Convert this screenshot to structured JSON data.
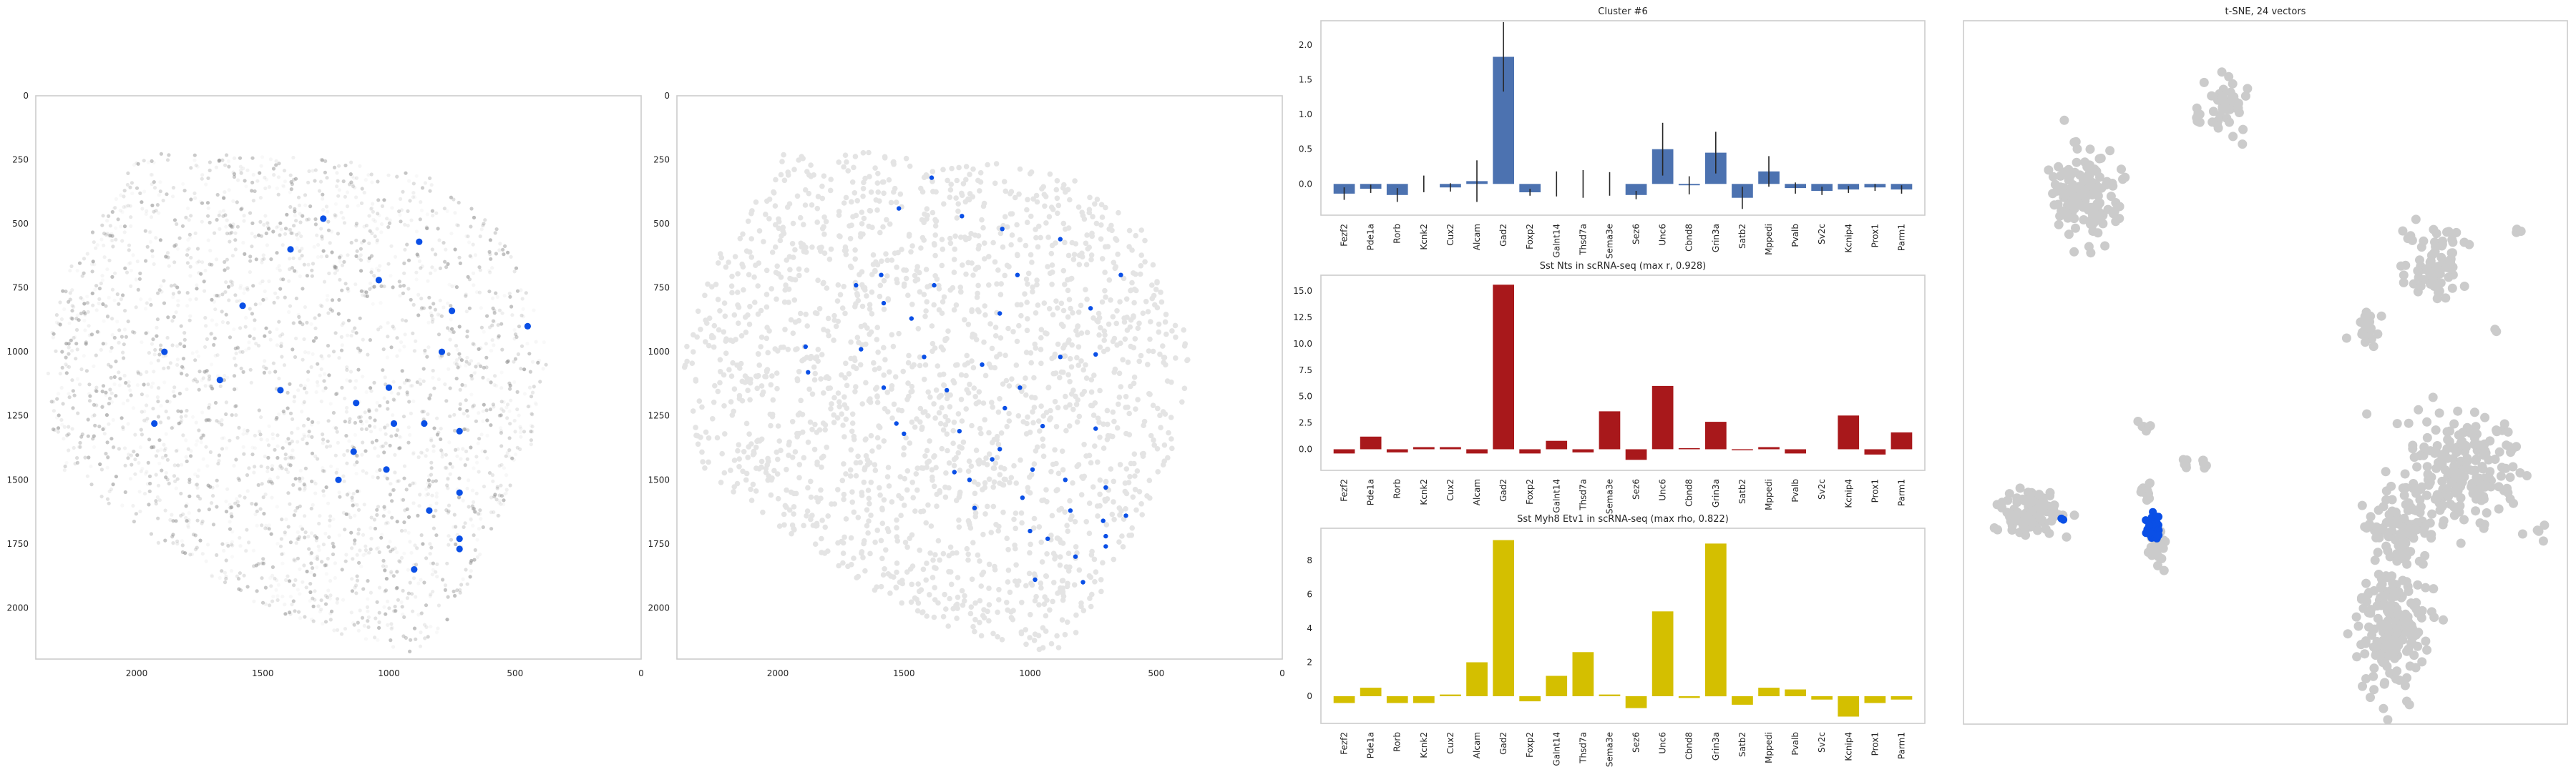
{
  "figure": {
    "background": "#ffffff",
    "frame_color": "#cccccc",
    "text_color": "#262626"
  },
  "colors": {
    "cell_gray": "#8c8c8c",
    "cell_light": "#e4e4e4",
    "highlight_blue": "#0a4fe6",
    "tsne_gray": "#cbcbcb",
    "bar_blue": "#4c72b0",
    "bar_red": "#a8181b",
    "bar_yellow": "#d4bf00",
    "error_bar": "#262626"
  },
  "chart_data": [
    {
      "id": "spatial-intensity",
      "type": "scatter",
      "title": "",
      "xlim": [
        2400,
        0
      ],
      "ylim": [
        2200,
        0
      ],
      "xticks": [
        "2000",
        "1500",
        "1000",
        "500",
        "0"
      ],
      "xtick_values": [
        2000,
        1500,
        1000,
        500,
        0
      ],
      "yticks": [
        "0",
        "250",
        "500",
        "750",
        "1000",
        "1250",
        "1500",
        "1750",
        "2000"
      ],
      "ytick_values": [
        0,
        250,
        500,
        750,
        1000,
        1250,
        1500,
        1750,
        2000
      ],
      "highlight_points": [
        {
          "x": 1260,
          "y": 480
        },
        {
          "x": 880,
          "y": 570
        },
        {
          "x": 1390,
          "y": 600
        },
        {
          "x": 1040,
          "y": 720
        },
        {
          "x": 1580,
          "y": 820
        },
        {
          "x": 750,
          "y": 840
        },
        {
          "x": 450,
          "y": 900
        },
        {
          "x": 1890,
          "y": 1000
        },
        {
          "x": 790,
          "y": 1000
        },
        {
          "x": 1670,
          "y": 1110
        },
        {
          "x": 1430,
          "y": 1150
        },
        {
          "x": 1000,
          "y": 1140
        },
        {
          "x": 1130,
          "y": 1200
        },
        {
          "x": 980,
          "y": 1280
        },
        {
          "x": 860,
          "y": 1280
        },
        {
          "x": 1930,
          "y": 1280
        },
        {
          "x": 720,
          "y": 1310
        },
        {
          "x": 1140,
          "y": 1390
        },
        {
          "x": 1010,
          "y": 1460
        },
        {
          "x": 1200,
          "y": 1500
        },
        {
          "x": 720,
          "y": 1550
        },
        {
          "x": 840,
          "y": 1620
        },
        {
          "x": 720,
          "y": 1730
        },
        {
          "x": 720,
          "y": 1770
        },
        {
          "x": 900,
          "y": 1850
        }
      ]
    },
    {
      "id": "spatial-cluster",
      "type": "scatter",
      "title": "",
      "xlim": [
        2400,
        0
      ],
      "ylim": [
        2200,
        0
      ],
      "xticks": [
        "2000",
        "1500",
        "1000",
        "500",
        "0"
      ],
      "xtick_values": [
        2000,
        1500,
        1000,
        500,
        0
      ],
      "yticks": [
        "0",
        "250",
        "500",
        "750",
        "1000",
        "1250",
        "1500",
        "1750",
        "2000"
      ],
      "ytick_values": [
        0,
        250,
        500,
        750,
        1000,
        1250,
        1500,
        1750,
        2000
      ],
      "highlight_points": [
        {
          "x": 1390,
          "y": 320
        },
        {
          "x": 1520,
          "y": 440
        },
        {
          "x": 1270,
          "y": 470
        },
        {
          "x": 1110,
          "y": 520
        },
        {
          "x": 880,
          "y": 560
        },
        {
          "x": 1590,
          "y": 700
        },
        {
          "x": 1380,
          "y": 740
        },
        {
          "x": 1050,
          "y": 700
        },
        {
          "x": 640,
          "y": 700
        },
        {
          "x": 1690,
          "y": 740
        },
        {
          "x": 1580,
          "y": 810
        },
        {
          "x": 1120,
          "y": 850
        },
        {
          "x": 760,
          "y": 830
        },
        {
          "x": 1470,
          "y": 870
        },
        {
          "x": 1890,
          "y": 980
        },
        {
          "x": 1670,
          "y": 990
        },
        {
          "x": 1420,
          "y": 1020
        },
        {
          "x": 880,
          "y": 1020
        },
        {
          "x": 740,
          "y": 1010
        },
        {
          "x": 1880,
          "y": 1080
        },
        {
          "x": 1190,
          "y": 1050
        },
        {
          "x": 1580,
          "y": 1140
        },
        {
          "x": 1330,
          "y": 1150
        },
        {
          "x": 1040,
          "y": 1140
        },
        {
          "x": 1100,
          "y": 1220
        },
        {
          "x": 1530,
          "y": 1280
        },
        {
          "x": 1500,
          "y": 1320
        },
        {
          "x": 1280,
          "y": 1310
        },
        {
          "x": 950,
          "y": 1290
        },
        {
          "x": 740,
          "y": 1300
        },
        {
          "x": 1120,
          "y": 1380
        },
        {
          "x": 1150,
          "y": 1420
        },
        {
          "x": 1300,
          "y": 1470
        },
        {
          "x": 990,
          "y": 1460
        },
        {
          "x": 1240,
          "y": 1500
        },
        {
          "x": 860,
          "y": 1500
        },
        {
          "x": 700,
          "y": 1530
        },
        {
          "x": 1030,
          "y": 1570
        },
        {
          "x": 1220,
          "y": 1610
        },
        {
          "x": 840,
          "y": 1620
        },
        {
          "x": 710,
          "y": 1660
        },
        {
          "x": 620,
          "y": 1640
        },
        {
          "x": 1000,
          "y": 1700
        },
        {
          "x": 930,
          "y": 1730
        },
        {
          "x": 700,
          "y": 1720
        },
        {
          "x": 820,
          "y": 1800
        },
        {
          "x": 700,
          "y": 1760
        },
        {
          "x": 980,
          "y": 1890
        },
        {
          "x": 790,
          "y": 1900
        }
      ]
    },
    {
      "id": "cluster-bar",
      "type": "bar",
      "title": "Cluster #6",
      "color_key": "bar_blue",
      "categories": [
        "Fezf2",
        "Pde1a",
        "Rorb",
        "Kcnk2",
        "Cux2",
        "Alcam",
        "Gad2",
        "Foxp2",
        "Galnt14",
        "Thsd7a",
        "Sema3e",
        "Sez6",
        "Unc6",
        "Cbnd8",
        "Grin3a",
        "Satb2",
        "Mppedi",
        "Pvalb",
        "Sv2c",
        "Kcnip4",
        "Prox1",
        "Parm1"
      ],
      "values": [
        -0.14,
        -0.07,
        -0.16,
        0.0,
        -0.05,
        0.04,
        1.83,
        -0.12,
        0.0,
        0.0,
        0.0,
        -0.16,
        0.5,
        -0.02,
        0.45,
        -0.2,
        0.18,
        -0.06,
        -0.1,
        -0.08,
        -0.05,
        -0.08
      ],
      "errors": [
        0.09,
        0.06,
        0.1,
        0.12,
        0.06,
        0.3,
        0.5,
        0.05,
        0.18,
        0.2,
        0.17,
        0.06,
        0.38,
        0.13,
        0.3,
        0.16,
        0.22,
        0.08,
        0.06,
        0.05,
        0.05,
        0.06
      ],
      "ylim": [
        -0.45,
        2.35
      ],
      "yticks": [
        "0.0",
        "0.5",
        "1.0",
        "1.5",
        "2.0"
      ],
      "ytick_values": [
        0,
        0.5,
        1.0,
        1.5,
        2.0
      ]
    },
    {
      "id": "sst-nts-bar",
      "type": "bar",
      "title": "Sst Nts in scRNA-seq (max r, 0.928)",
      "color_key": "bar_red",
      "categories": [
        "Fezf2",
        "Pde1a",
        "Rorb",
        "Kcnk2",
        "Cux2",
        "Alcam",
        "Gad2",
        "Foxp2",
        "Galnt14",
        "Thsd7a",
        "Sema3e",
        "Sez6",
        "Unc6",
        "Cbnd8",
        "Grin3a",
        "Satb2",
        "Mppedi",
        "Pvalb",
        "Sv2c",
        "Kcnip4",
        "Prox1",
        "Parm1"
      ],
      "values": [
        -0.4,
        1.2,
        -0.3,
        0.2,
        0.2,
        -0.4,
        15.6,
        -0.4,
        0.8,
        -0.3,
        3.6,
        -1.0,
        6.0,
        0.1,
        2.6,
        -0.1,
        0.2,
        -0.4,
        0.0,
        3.2,
        -0.5,
        1.6
      ],
      "ylim": [
        -2.0,
        16.5
      ],
      "yticks": [
        "0.0",
        "2.5",
        "5.0",
        "7.5",
        "10.0",
        "12.5",
        "15.0"
      ],
      "ytick_values": [
        0,
        2.5,
        5.0,
        7.5,
        10.0,
        12.5,
        15.0
      ]
    },
    {
      "id": "sst-myh8-bar",
      "type": "bar",
      "title": "Sst Myh8 Etv1  in scRNA-seq (max rho, 0.822)",
      "color_key": "bar_yellow",
      "categories": [
        "Fezf2",
        "Pde1a",
        "Rorb",
        "Kcnk2",
        "Cux2",
        "Alcam",
        "Gad2",
        "Foxp2",
        "Galnt14",
        "Thsd7a",
        "Sema3e",
        "Sez6",
        "Unc6",
        "Cbnd8",
        "Grin3a",
        "Satb2",
        "Mppedi",
        "Pvalb",
        "Sv2c",
        "Kcnip4",
        "Prox1",
        "Parm1"
      ],
      "values": [
        -0.4,
        0.5,
        -0.4,
        -0.4,
        0.1,
        2.0,
        9.2,
        -0.3,
        1.2,
        2.6,
        0.1,
        -0.7,
        5.0,
        -0.1,
        9.0,
        -0.5,
        0.5,
        0.4,
        -0.2,
        -1.2,
        -0.4,
        -0.2
      ],
      "ylim": [
        -1.6,
        9.9
      ],
      "yticks": [
        "0",
        "2",
        "4",
        "6",
        "8"
      ],
      "ytick_values": [
        0,
        2,
        4,
        6,
        8
      ]
    },
    {
      "id": "tsne",
      "type": "scatter",
      "title": "t-SNE, 24 vectors",
      "xlim": [
        0,
        100
      ],
      "ylim": [
        0,
        100
      ],
      "clusters": [
        {
          "cx": 44,
          "cy": 12,
          "rx": 3.5,
          "ry": 5,
          "n": 40
        },
        {
          "cx": 39,
          "cy": 13,
          "rx": 1.6,
          "ry": 1.6,
          "n": 6
        },
        {
          "cx": 42,
          "cy": 15,
          "rx": 1.2,
          "ry": 1.2,
          "n": 4
        },
        {
          "cx": 20,
          "cy": 25,
          "rx": 7,
          "ry": 7,
          "n": 150
        },
        {
          "cx": 78,
          "cy": 35,
          "rx": 5,
          "ry": 6,
          "n": 80
        },
        {
          "cx": 67,
          "cy": 44,
          "rx": 2.5,
          "ry": 2.5,
          "n": 22
        },
        {
          "cx": 92,
          "cy": 30,
          "rx": 1,
          "ry": 1,
          "n": 3
        },
        {
          "cx": 82,
          "cy": 64,
          "rx": 11,
          "ry": 8,
          "n": 210
        },
        {
          "cx": 72,
          "cy": 72,
          "rx": 6,
          "ry": 5,
          "n": 90
        },
        {
          "cx": 71,
          "cy": 86,
          "rx": 6,
          "ry": 10,
          "n": 200
        },
        {
          "cx": 11,
          "cy": 70,
          "rx": 6,
          "ry": 3.5,
          "n": 90
        },
        {
          "cx": 30,
          "cy": 67,
          "rx": 1.6,
          "ry": 1.6,
          "n": 10
        },
        {
          "cx": 32,
          "cy": 75,
          "rx": 2,
          "ry": 2.5,
          "n": 20
        },
        {
          "cx": 37,
          "cy": 63,
          "rx": 1.1,
          "ry": 1.1,
          "n": 6
        },
        {
          "cx": 40,
          "cy": 63,
          "rx": 1.0,
          "ry": 1.0,
          "n": 5
        },
        {
          "cx": 30,
          "cy": 58,
          "rx": 2,
          "ry": 1.2,
          "n": 6
        },
        {
          "cx": 88,
          "cy": 44,
          "rx": 1,
          "ry": 1,
          "n": 2
        },
        {
          "cx": 96,
          "cy": 73,
          "rx": 1.2,
          "ry": 1.2,
          "n": 4
        }
      ],
      "highlight_clusters": [
        {
          "cx": 31.5,
          "cy": 72,
          "rx": 1.5,
          "ry": 2.2,
          "n": 45
        },
        {
          "cx": 16.5,
          "cy": 71,
          "rx": 0.5,
          "ry": 0.5,
          "n": 2
        }
      ]
    }
  ]
}
